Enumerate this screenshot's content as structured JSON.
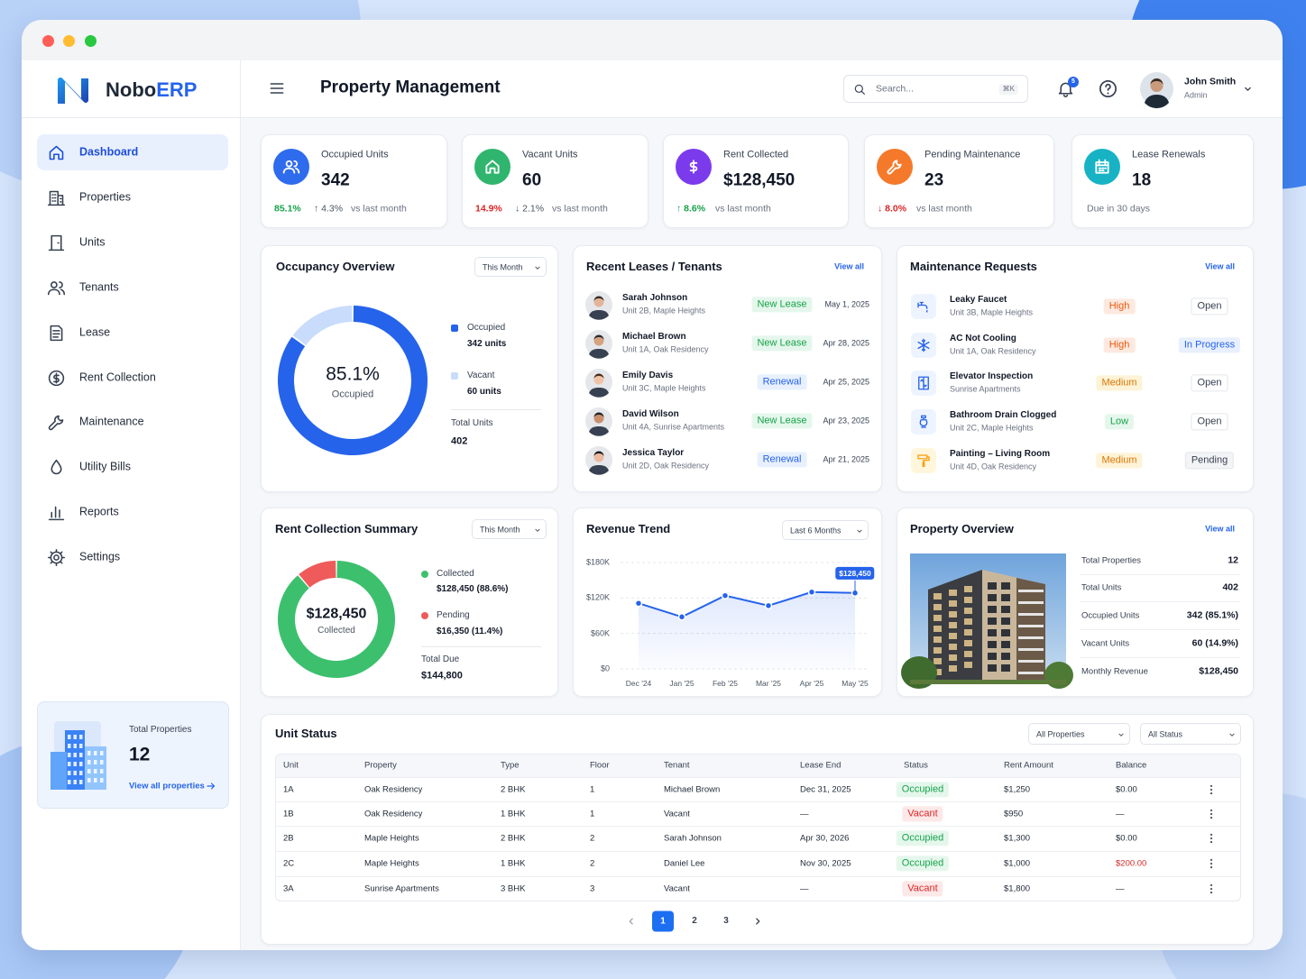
{
  "app": {
    "brand": "Nobo",
    "brand_accent": "ERP"
  },
  "sidebar": {
    "nav": [
      "Dashboard",
      "Properties",
      "Units",
      "Tenants",
      "Lease",
      "Rent Collection",
      "Maintenance",
      "Utility Bills",
      "Reports",
      "Settings"
    ],
    "promo": {
      "label": "Total Properties",
      "value": "12",
      "link": "View all properties"
    }
  },
  "header": {
    "title": "Property Management",
    "search": "Search...",
    "shortcut": "⌘K",
    "notifications": "5",
    "user": "John Smith",
    "role": "Admin"
  },
  "kpis": [
    {
      "label": "Occupied Units",
      "value": "342",
      "rate": "85.1%",
      "change": "↑ 4.3%",
      "note": "vs last month",
      "color": "#2f6bed",
      "rate_color": "#16a34a",
      "change_color": "#4b5563"
    },
    {
      "label": "Vacant Units",
      "value": "60",
      "rate": "14.9%",
      "change": "↓ 2.1%",
      "note": "vs last month",
      "color": "#2fb56e",
      "rate_color": "#dc2626",
      "change_color": "#4b5563"
    },
    {
      "label": "Rent Collected",
      "value": "$128,450",
      "change": "↑ 8.6%",
      "note": "vs last month",
      "color": "#7c3aed",
      "change_color": "#16a34a"
    },
    {
      "label": "Pending Maintenance",
      "value": "23",
      "change": "↓ 8.0%",
      "note": "vs last month",
      "color": "#f5792a",
      "change_color": "#dc2626"
    },
    {
      "label": "Lease Renewals",
      "value": "18",
      "note": "Due in 30 days",
      "color": "#17b3c4"
    }
  ],
  "leases": {
    "title": "Recent Leases / Tenants",
    "link": "View all",
    "rows": [
      {
        "name": "Sarah Johnson",
        "unit": "Unit 2B, Maple Heights",
        "tag": "New Lease",
        "date": "May 1, 2025"
      },
      {
        "name": "Michael Brown",
        "unit": "Unit 1A, Oak Residency",
        "tag": "New Lease",
        "date": "Apr 28, 2025"
      },
      {
        "name": "Emily Davis",
        "unit": "Unit 3C, Maple Heights",
        "tag": "Renewal",
        "date": "Apr 25, 2025"
      },
      {
        "name": "David Wilson",
        "unit": "Unit 4A, Sunrise Apartments",
        "tag": "New Lease",
        "date": "Apr 23, 2025"
      },
      {
        "name": "Jessica Taylor",
        "unit": "Unit 2D, Oak Residency",
        "tag": "Renewal",
        "date": "Apr 21, 2025"
      }
    ]
  },
  "maintenance": {
    "title": "Maintenance Requests",
    "link": "View all",
    "rows": [
      {
        "title": "Leaky Faucet",
        "location": "Unit 3B, Maple Heights",
        "priority": "High",
        "status": "Open"
      },
      {
        "title": "AC Not Cooling",
        "location": "Unit 1A, Oak Residency",
        "priority": "High",
        "status": "In Progress"
      },
      {
        "title": "Elevator Inspection",
        "location": "Sunrise Apartments",
        "priority": "Medium",
        "status": "Open"
      },
      {
        "title": "Bathroom Drain Clogged",
        "location": "Unit 2C, Maple Heights",
        "priority": "Low",
        "status": "Open"
      },
      {
        "title": "Painting – Living Room",
        "location": "Unit 4D, Oak Residency",
        "priority": "Medium",
        "status": "Pending"
      }
    ]
  },
  "tag_styles": {
    "New Lease": [
      "#e5f7ec",
      "#16a34a"
    ],
    "Renewal": [
      "#e8f0fe",
      "#2563eb"
    ],
    "High": [
      "#fde9df",
      "#ea580c"
    ],
    "Medium": [
      "#fef3d6",
      "#d97706"
    ],
    "Low": [
      "#e5f7ec",
      "#16a34a"
    ],
    "Open": [
      "#ffffff",
      "#374151"
    ],
    "In Progress": [
      "#e8f0fe",
      "#2563eb"
    ],
    "Pending": [
      "#f3f4f6",
      "#374151"
    ],
    "Occupied": [
      "#e5f7ec",
      "#16a34a"
    ],
    "Vacant": [
      "#fde8e8",
      "#dc2626"
    ]
  },
  "property": {
    "title": "Property Overview",
    "link": "View all",
    "rows": [
      [
        "Total Properties",
        "12"
      ],
      [
        "Total Units",
        "402"
      ],
      [
        "Occupied Units",
        "342 (85.1%)"
      ],
      [
        "Vacant Units",
        "60 (14.9%)"
      ],
      [
        "Monthly Revenue",
        "$128,450"
      ]
    ]
  },
  "units": {
    "title": "Unit Status",
    "filters": [
      "All Properties",
      "All Status"
    ],
    "columns": [
      "Unit",
      "Property",
      "Type",
      "Floor",
      "Tenant",
      "Lease End",
      "Status",
      "Rent Amount",
      "Balance"
    ],
    "rows": [
      [
        "1A",
        "Oak Residency",
        "2 BHK",
        "1",
        "Michael Brown",
        "Dec 31, 2025",
        "Occupied",
        "$1,250",
        "$0.00"
      ],
      [
        "1B",
        "Oak Residency",
        "1 BHK",
        "1",
        "Vacant",
        "—",
        "Vacant",
        "$950",
        "—"
      ],
      [
        "2B",
        "Maple Heights",
        "2 BHK",
        "2",
        "Sarah Johnson",
        "Apr 30, 2026",
        "Occupied",
        "$1,300",
        "$0.00"
      ],
      [
        "2C",
        "Maple Heights",
        "1 BHK",
        "2",
        "Daniel Lee",
        "Nov 30, 2025",
        "Occupied",
        "$1,000",
        "$200.00"
      ],
      [
        "3A",
        "Sunrise Apartments",
        "3 BHK",
        "3",
        "Vacant",
        "—",
        "Vacant",
        "$1,800",
        "—"
      ]
    ],
    "text_colors": {
      "$200.00": "#dc2626"
    },
    "pages": [
      "1",
      "2",
      "3"
    ]
  },
  "chart_data": [
    {
      "type": "donut",
      "title": "Occupancy Overview",
      "control": "This Month",
      "categories": [
        "Occupied",
        "Vacant"
      ],
      "values": [
        342,
        60
      ],
      "value_labels": [
        "342 units",
        "60 units"
      ],
      "colors": [
        "#2563eb",
        "#c9dcfb"
      ],
      "center_value": "85.1%",
      "center_label": "Occupied",
      "total_label": "Total Units",
      "total": 402
    },
    {
      "type": "donut",
      "title": "Rent Collection Summary",
      "control": "This Month",
      "categories": [
        "Collected",
        "Pending"
      ],
      "values": [
        128450,
        16350
      ],
      "value_labels": [
        "$128,450 (88.6%)",
        "$16,350 (11.4%)"
      ],
      "colors": [
        "#3cc06e",
        "#ef5b5b"
      ],
      "center_value": "$128,450",
      "center_label": "Collected",
      "total_label": "Total Due",
      "total": "$144,800"
    },
    {
      "type": "line",
      "title": "Revenue Trend",
      "control": "Last 6 Months",
      "categories": [
        "Dec '24",
        "Jan '25",
        "Feb '25",
        "Mar '25",
        "Apr '25",
        "May '25"
      ],
      "values": [
        111000,
        88000,
        124000,
        107000,
        130000,
        128450
      ],
      "color": "#2563eb",
      "ylim": [
        0,
        180000
      ],
      "yticks": [
        {
          "value": 0,
          "label": "$0"
        },
        {
          "value": 60000,
          "label": "$60K"
        },
        {
          "value": 120000,
          "label": "$120K"
        },
        {
          "value": 180000,
          "label": "$180K"
        }
      ],
      "grid": true,
      "annotation": "$128,450"
    }
  ]
}
